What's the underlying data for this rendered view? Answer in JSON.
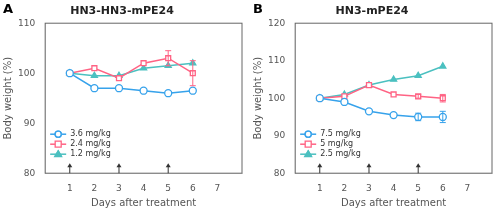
{
  "chart_data": [
    {
      "type": "line",
      "title": "HN3-HN3-mPE24",
      "x_label": "Days after treatment",
      "y_label": "Body weight (%)",
      "xlim": [
        0,
        8
      ],
      "xticks": [
        1,
        2,
        3,
        4,
        5,
        6,
        7
      ],
      "ylim": [
        80,
        110
      ],
      "yticks": [
        80,
        90,
        100,
        110
      ],
      "grid": false,
      "legend": "lower left",
      "annotations": [
        {
          "text": "A"
        },
        {
          "x": 1,
          "arrow": "up"
        },
        {
          "x": 3,
          "arrow": "up"
        },
        {
          "x": 5,
          "arrow": "up"
        }
      ],
      "x": [
        1,
        2,
        3,
        4,
        5,
        6
      ],
      "series": [
        {
          "name": "3.6 mg/kg",
          "marker": "open circle",
          "values": [
            100,
            97.0,
            97.0,
            96.5,
            96.0,
            96.5
          ],
          "errors": [
            0,
            0,
            0,
            0,
            0,
            0
          ]
        },
        {
          "name": "2.4 mg/kg",
          "marker": "open square",
          "values": [
            100,
            101.0,
            99.0,
            102.0,
            103.0,
            100.0
          ],
          "errors": [
            0,
            0,
            0,
            0,
            1.5,
            2.5
          ]
        },
        {
          "name": "1.2 mg/kg",
          "marker": "filled triangle",
          "values": [
            100,
            99.5,
            99.5,
            101.0,
            101.5,
            102.0
          ],
          "errors": [
            0,
            0,
            0,
            0,
            0,
            0
          ]
        }
      ]
    },
    {
      "type": "line",
      "title": "HN3-mPE24",
      "x_label": "Days after treatment",
      "y_label": "Body weight (%)",
      "xlim": [
        0,
        8
      ],
      "xticks": [
        1,
        2,
        3,
        4,
        5,
        6,
        7
      ],
      "ylim": [
        80,
        120
      ],
      "yticks": [
        80,
        90,
        100,
        110,
        120
      ],
      "grid": false,
      "legend": "lower left",
      "annotations": [
        {
          "text": "B"
        },
        {
          "x": 1,
          "arrow": "up"
        },
        {
          "x": 3,
          "arrow": "up"
        },
        {
          "x": 5,
          "arrow": "up"
        }
      ],
      "x": [
        1,
        2,
        3,
        4,
        5,
        6
      ],
      "series": [
        {
          "name": "7.5 mg/kg",
          "marker": "open circle",
          "values": [
            100,
            99.0,
            96.5,
            95.5,
            95.0,
            95.0
          ],
          "errors": [
            0,
            0,
            0,
            0,
            1.0,
            1.5
          ]
        },
        {
          "name": "5 mg/kg",
          "marker": "open square",
          "values": [
            100,
            100.5,
            103.5,
            101.0,
            100.5,
            100.0
          ],
          "errors": [
            0,
            0,
            0,
            0,
            0.5,
            1.0
          ]
        },
        {
          "name": "2.5 mg/kg",
          "marker": "filled triangle",
          "values": [
            100,
            101.0,
            103.5,
            105.0,
            106.0,
            108.5
          ],
          "errors": [
            0,
            0,
            0,
            0,
            0,
            0
          ]
        }
      ]
    }
  ]
}
